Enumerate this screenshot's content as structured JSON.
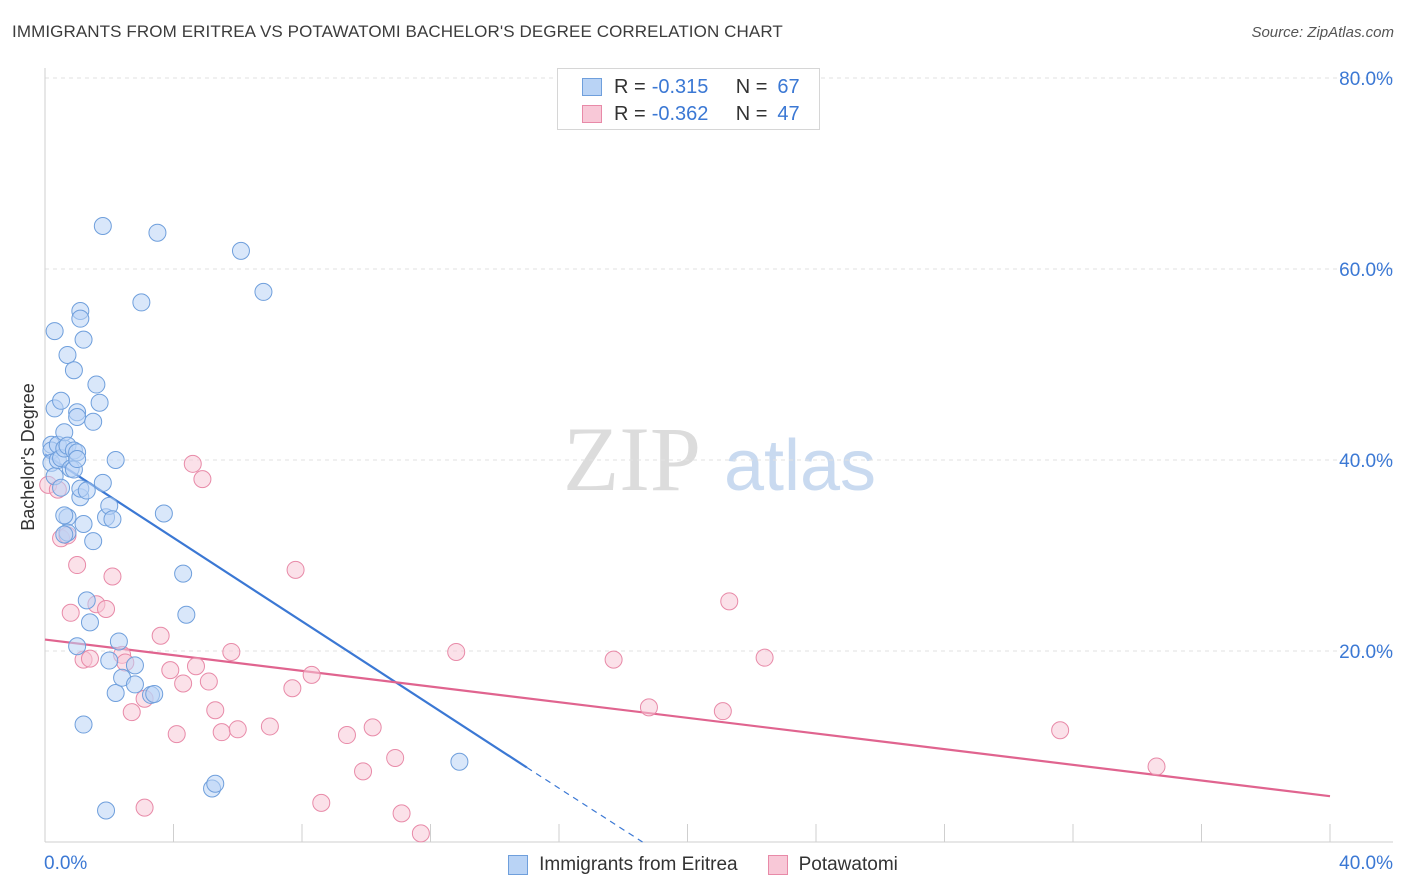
{
  "title": "IMMIGRANTS FROM ERITREA VS POTAWATOMI BACHELOR'S DEGREE CORRELATION CHART",
  "source": "Source: ZipAtlas.com",
  "watermark": {
    "zip": "ZIP",
    "atlas": "atlas"
  },
  "legend": {
    "r_label": "R =",
    "n_label": "N =",
    "rows": [
      {
        "r": "-0.315",
        "n": "67",
        "fill": "#b9d3f5",
        "stroke": "#6f9fdc"
      },
      {
        "r": "-0.362",
        "n": "47",
        "fill": "#f8c8d7",
        "stroke": "#e88aa8"
      }
    ]
  },
  "chart_data": {
    "type": "scatter",
    "title": "IMMIGRANTS FROM ERITREA VS POTAWATOMI BACHELOR'S DEGREE CORRELATION CHART",
    "xlabel": "",
    "ylabel": "Bachelor's Degree",
    "xlim": [
      0,
      40
    ],
    "ylim": [
      0,
      80
    ],
    "x_tick_labels": [
      "0.0%",
      "40.0%"
    ],
    "y_ticks": [
      20,
      40,
      60,
      80
    ],
    "y_tick_labels": [
      "20.0%",
      "40.0%",
      "60.0%",
      "80.0%"
    ],
    "grid": true,
    "legend_position": "top-center",
    "series": [
      {
        "name": "Immigrants from Eritrea",
        "color": "#3b78d4",
        "fill": "#b9d3f5",
        "stroke": "#6f9fdc",
        "points": [
          [
            0.2,
            41.6
          ],
          [
            0.2,
            41.0
          ],
          [
            0.2,
            39.7
          ],
          [
            0.3,
            38.3
          ],
          [
            0.3,
            45.4
          ],
          [
            0.3,
            53.5
          ],
          [
            0.4,
            41.6
          ],
          [
            0.4,
            40.0
          ],
          [
            0.5,
            46.2
          ],
          [
            0.5,
            40.2
          ],
          [
            0.5,
            37.1
          ],
          [
            0.6,
            41.2
          ],
          [
            0.6,
            42.9
          ],
          [
            0.7,
            51.0
          ],
          [
            0.7,
            41.5
          ],
          [
            0.7,
            34.0
          ],
          [
            0.7,
            32.4
          ],
          [
            0.8,
            39.1
          ],
          [
            0.9,
            49.4
          ],
          [
            0.9,
            41.0
          ],
          [
            0.9,
            39.0
          ],
          [
            1.0,
            45.0
          ],
          [
            1.0,
            40.8
          ],
          [
            1.0,
            44.5
          ],
          [
            1.0,
            40.1
          ],
          [
            0.6,
            34.2
          ],
          [
            0.6,
            32.2
          ],
          [
            1.1,
            55.6
          ],
          [
            1.1,
            54.8
          ],
          [
            1.1,
            36.1
          ],
          [
            1.1,
            37.0
          ],
          [
            1.2,
            52.6
          ],
          [
            1.2,
            33.3
          ],
          [
            1.3,
            36.8
          ],
          [
            1.3,
            25.3
          ],
          [
            1.4,
            23.0
          ],
          [
            1.5,
            31.5
          ],
          [
            1.5,
            44.0
          ],
          [
            1.6,
            47.9
          ],
          [
            1.7,
            46.0
          ],
          [
            1.8,
            64.5
          ],
          [
            1.8,
            37.6
          ],
          [
            1.9,
            34.0
          ],
          [
            2.0,
            35.2
          ],
          [
            2.1,
            33.8
          ],
          [
            2.2,
            40.0
          ],
          [
            2.2,
            15.6
          ],
          [
            2.3,
            21.0
          ],
          [
            2.4,
            17.2
          ],
          [
            2.8,
            16.5
          ],
          [
            2.8,
            18.5
          ],
          [
            2.0,
            19.0
          ],
          [
            3.0,
            56.5
          ],
          [
            3.3,
            15.4
          ],
          [
            3.4,
            15.5
          ],
          [
            3.5,
            63.8
          ],
          [
            3.7,
            34.4
          ],
          [
            4.3,
            28.1
          ],
          [
            4.4,
            23.8
          ],
          [
            5.2,
            5.6
          ],
          [
            5.3,
            6.1
          ],
          [
            6.1,
            61.9
          ],
          [
            6.8,
            57.6
          ],
          [
            12.9,
            8.4
          ],
          [
            1.2,
            12.3
          ],
          [
            1.9,
            3.3
          ],
          [
            1.0,
            20.5
          ]
        ],
        "trend": {
          "x": [
            0.0,
            15.0
          ],
          "y": [
            40.6,
            7.8
          ],
          "dashed_to": [
            18.6,
            0.0
          ]
        }
      },
      {
        "name": "Potawatomi",
        "color": "#e0648f",
        "fill": "#f8c8d7",
        "stroke": "#e88aa8",
        "points": [
          [
            0.1,
            37.4
          ],
          [
            0.4,
            36.9
          ],
          [
            0.5,
            31.8
          ],
          [
            0.7,
            32.1
          ],
          [
            0.8,
            24.0
          ],
          [
            1.0,
            29.0
          ],
          [
            1.2,
            19.1
          ],
          [
            1.4,
            19.2
          ],
          [
            1.6,
            24.9
          ],
          [
            1.9,
            24.4
          ],
          [
            2.1,
            27.8
          ],
          [
            2.4,
            19.6
          ],
          [
            2.5,
            18.8
          ],
          [
            2.7,
            13.6
          ],
          [
            3.1,
            15.0
          ],
          [
            3.1,
            3.6
          ],
          [
            3.6,
            21.6
          ],
          [
            3.9,
            18.0
          ],
          [
            4.1,
            11.3
          ],
          [
            4.3,
            16.6
          ],
          [
            4.6,
            39.6
          ],
          [
            4.7,
            18.4
          ],
          [
            4.9,
            38.0
          ],
          [
            5.1,
            16.8
          ],
          [
            5.3,
            13.8
          ],
          [
            5.5,
            11.5
          ],
          [
            5.8,
            19.9
          ],
          [
            6.0,
            11.8
          ],
          [
            7.0,
            12.1
          ],
          [
            7.7,
            16.1
          ],
          [
            7.8,
            28.5
          ],
          [
            8.3,
            17.5
          ],
          [
            8.6,
            4.1
          ],
          [
            9.4,
            11.2
          ],
          [
            9.9,
            7.4
          ],
          [
            10.2,
            12.0
          ],
          [
            10.9,
            8.8
          ],
          [
            11.1,
            3.0
          ],
          [
            11.7,
            0.9
          ],
          [
            12.8,
            19.9
          ],
          [
            17.7,
            19.1
          ],
          [
            18.8,
            14.1
          ],
          [
            21.1,
            13.7
          ],
          [
            21.3,
            25.2
          ],
          [
            22.4,
            19.3
          ],
          [
            31.6,
            11.7
          ],
          [
            34.6,
            7.9
          ]
        ],
        "trend": {
          "x": [
            0.0,
            40.0
          ],
          "y": [
            21.2,
            4.8
          ]
        }
      }
    ]
  },
  "bottom_legend": [
    "Immigrants from Eritrea",
    "Potawatomi"
  ]
}
